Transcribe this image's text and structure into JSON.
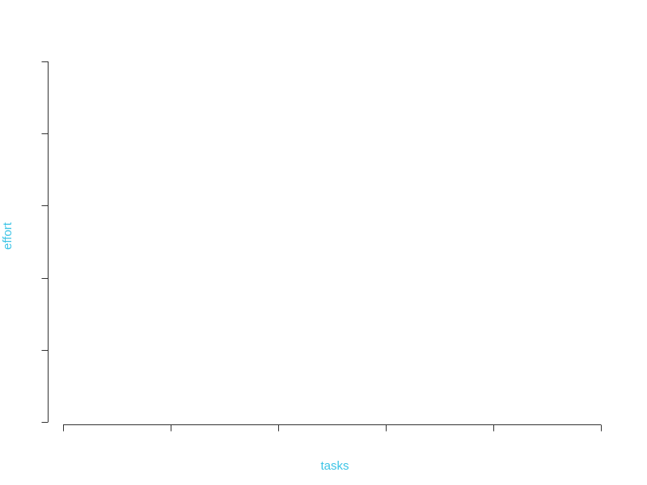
{
  "chart_data": {
    "type": "scatter",
    "title": "",
    "xlabel": "tasks",
    "ylabel": "effort",
    "series": [],
    "x_tick_count": 6,
    "y_tick_count": 6,
    "x_tick_labels": [],
    "y_tick_labels": [],
    "grid": false,
    "axis_label_color": "#3cc4e6",
    "axis_color": "#333333"
  }
}
